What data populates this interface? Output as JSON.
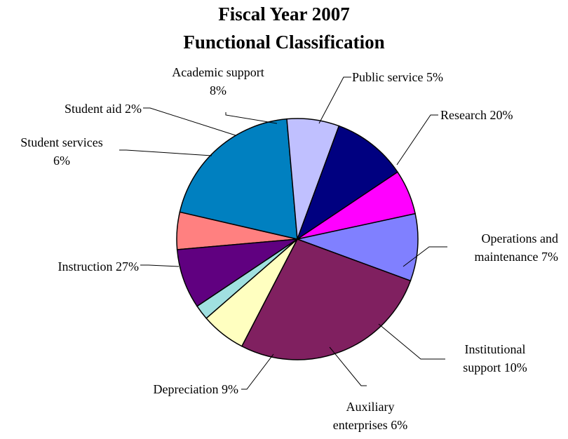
{
  "chart_data": {
    "type": "pie",
    "title_lines": [
      "Fiscal Year 2007",
      "Functional Classification"
    ],
    "slices": [
      {
        "label_lines": [
          "Public service 5%"
        ],
        "value": 5,
        "color": "#FF8080"
      },
      {
        "label_lines": [
          "Research 20%"
        ],
        "value": 20,
        "color": "#0080C0"
      },
      {
        "label_lines": [
          "Operations and",
          "maintenance 7%"
        ],
        "value": 7,
        "color": "#C0C0FF"
      },
      {
        "label_lines": [
          "Institutional",
          "support 10%"
        ],
        "value": 10,
        "color": "#000080"
      },
      {
        "label_lines": [
          "Auxiliary",
          "enterprises 6%"
        ],
        "value": 6,
        "color": "#FF00FF"
      },
      {
        "label_lines": [
          "Depreciation 9%"
        ],
        "value": 9,
        "color": "#8080FF"
      },
      {
        "label_lines": [
          "Instruction 27%"
        ],
        "value": 27,
        "color": "#802060"
      },
      {
        "label_lines": [
          "Student services",
          "6%"
        ],
        "value": 6,
        "color": "#FFFFC0"
      },
      {
        "label_lines": [
          "Student aid 2%"
        ],
        "value": 2,
        "color": "#A0E0E0"
      },
      {
        "label_lines": [
          "Academic support",
          "8%"
        ],
        "value": 8,
        "color": "#600080"
      }
    ],
    "legend": "none"
  }
}
